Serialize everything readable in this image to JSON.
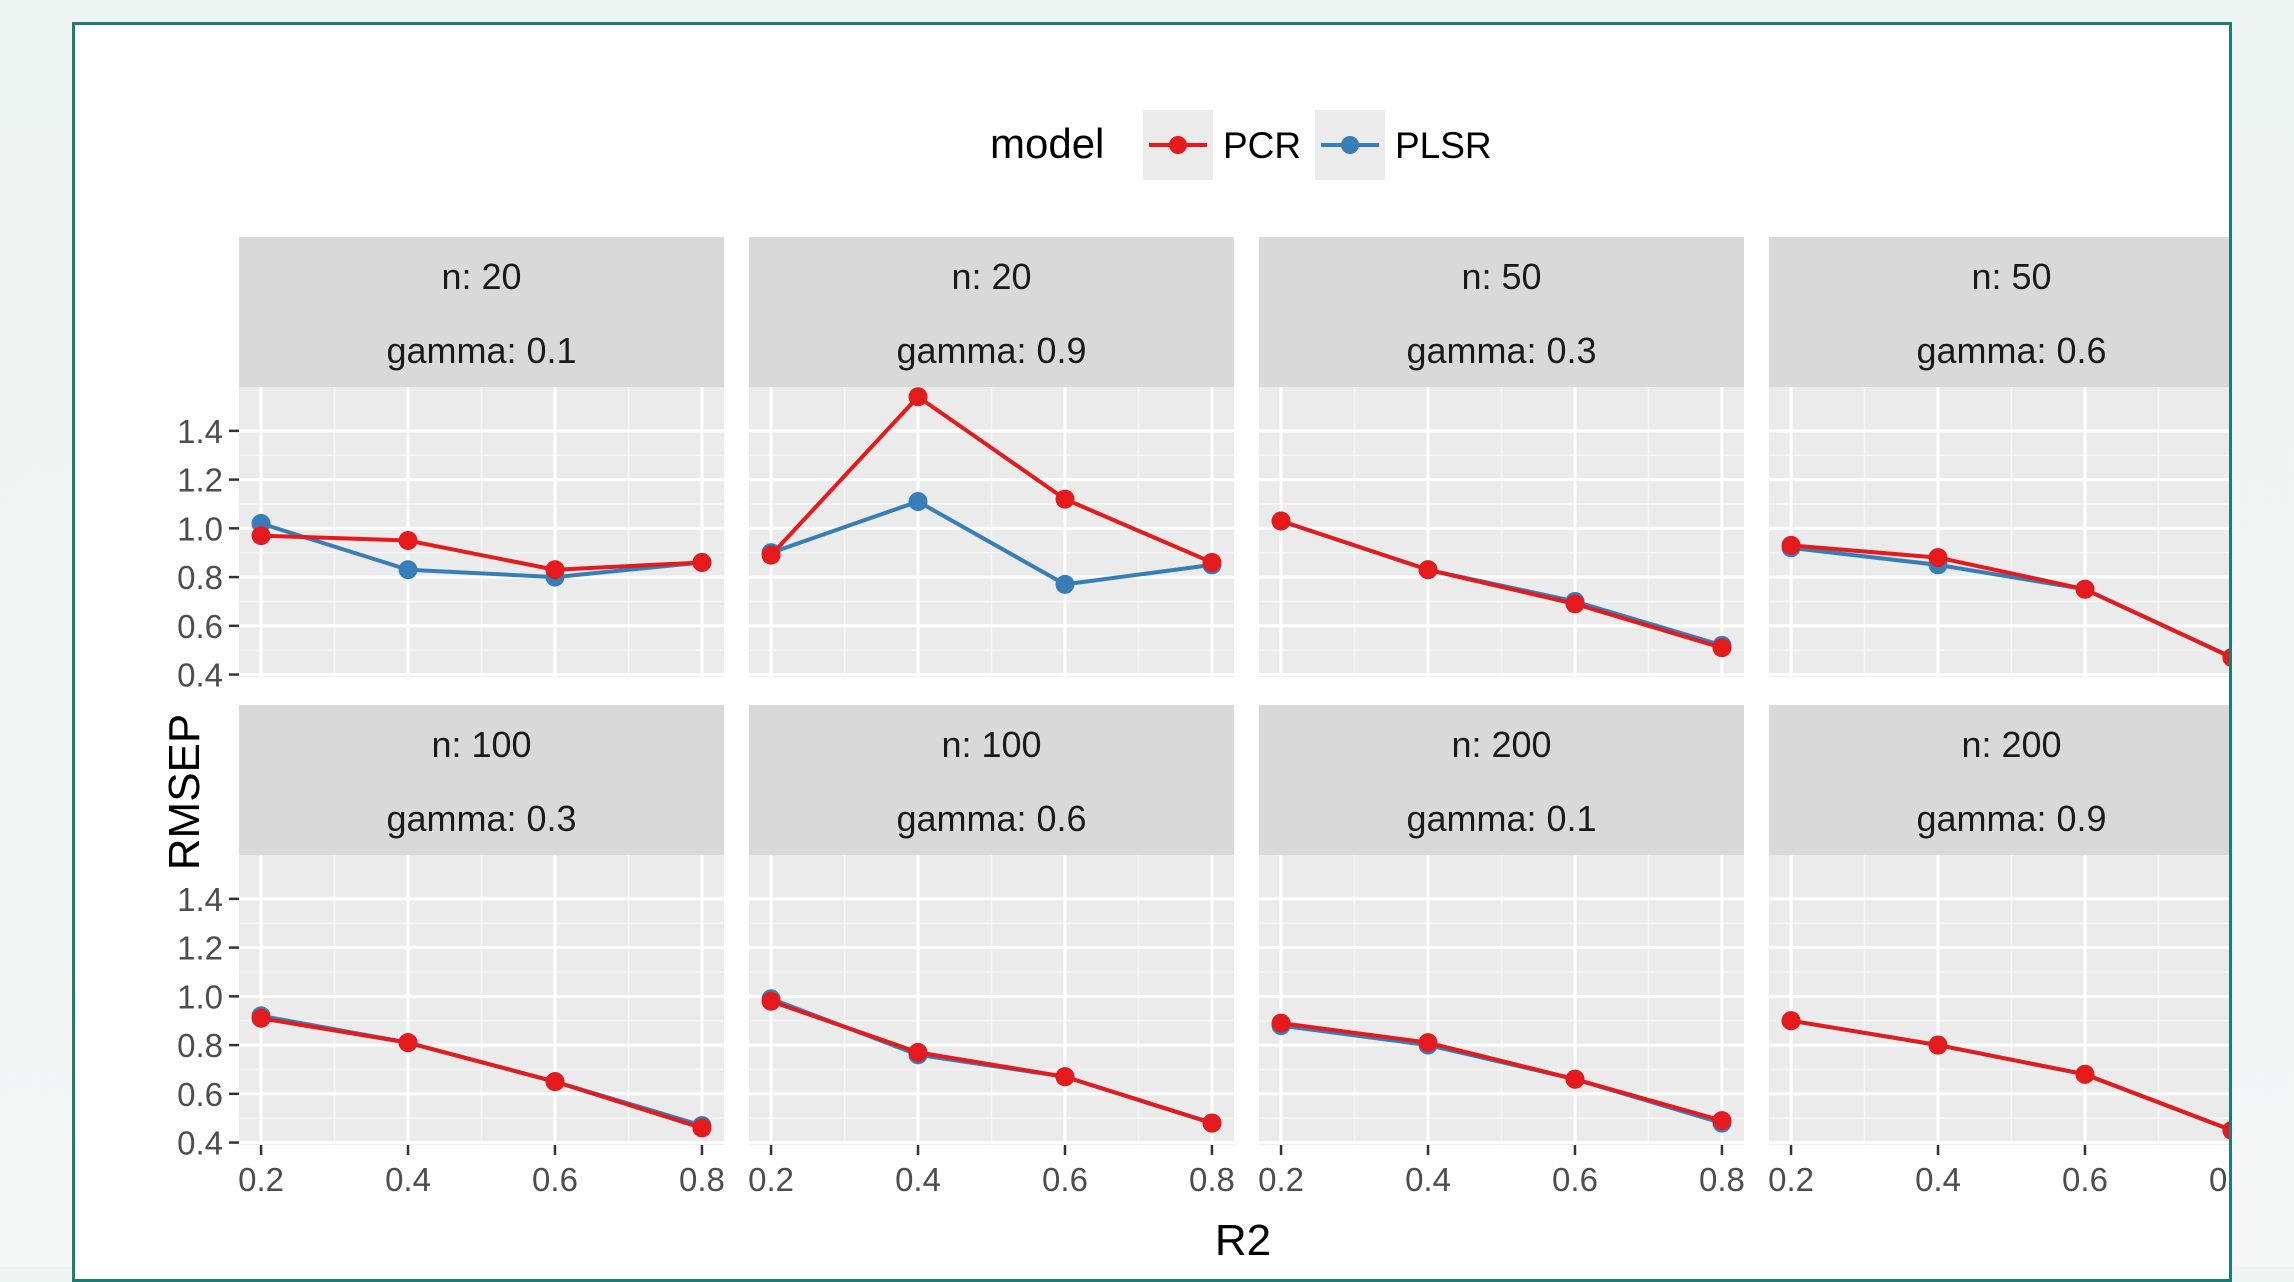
{
  "chart_data": {
    "type": "line",
    "xlabel": "R2",
    "ylabel": "RMSEP",
    "x_ticks": [
      "0.2",
      "0.4",
      "0.6",
      "0.8"
    ],
    "y_ticks": [
      "0.4",
      "0.6",
      "0.8",
      "1.0",
      "1.2",
      "1.4"
    ],
    "xlim": [
      0.17,
      0.83
    ],
    "ylim": [
      0.39,
      1.58
    ],
    "grid": true,
    "legend": {
      "title": "model",
      "placement": "top",
      "entries": [
        {
          "name": "PCR",
          "color": "#e41a1c"
        },
        {
          "name": "PLSR",
          "color": "#377eb8"
        }
      ]
    },
    "x": [
      0.2,
      0.4,
      0.6,
      0.8
    ],
    "panels": [
      {
        "strip1": "n: 20",
        "strip2": "gamma: 0.1",
        "series": [
          {
            "name": "PLSR",
            "values": [
              1.02,
              0.83,
              0.8,
              0.86
            ]
          },
          {
            "name": "PCR",
            "values": [
              0.97,
              0.95,
              0.83,
              0.86
            ]
          }
        ]
      },
      {
        "strip1": "n: 20",
        "strip2": "gamma: 0.9",
        "series": [
          {
            "name": "PLSR",
            "values": [
              0.9,
              1.11,
              0.77,
              0.85
            ]
          },
          {
            "name": "PCR",
            "values": [
              0.89,
              1.54,
              1.12,
              0.86
            ]
          }
        ]
      },
      {
        "strip1": "n: 50",
        "strip2": "gamma: 0.3",
        "series": [
          {
            "name": "PLSR",
            "values": [
              1.03,
              0.83,
              0.7,
              0.52
            ]
          },
          {
            "name": "PCR",
            "values": [
              1.03,
              0.83,
              0.69,
              0.51
            ]
          }
        ]
      },
      {
        "strip1": "n: 50",
        "strip2": "gamma: 0.6",
        "series": [
          {
            "name": "PLSR",
            "values": [
              0.92,
              0.85,
              0.75,
              0.47
            ]
          },
          {
            "name": "PCR",
            "values": [
              0.93,
              0.88,
              0.75,
              0.47
            ]
          }
        ]
      },
      {
        "strip1": "n: 100",
        "strip2": "gamma: 0.3",
        "series": [
          {
            "name": "PLSR",
            "values": [
              0.92,
              0.81,
              0.65,
              0.47
            ]
          },
          {
            "name": "PCR",
            "values": [
              0.91,
              0.81,
              0.65,
              0.46
            ]
          }
        ]
      },
      {
        "strip1": "n: 100",
        "strip2": "gamma: 0.6",
        "series": [
          {
            "name": "PLSR",
            "values": [
              0.99,
              0.76,
              0.67,
              0.48
            ]
          },
          {
            "name": "PCR",
            "values": [
              0.98,
              0.77,
              0.67,
              0.48
            ]
          }
        ]
      },
      {
        "strip1": "n: 200",
        "strip2": "gamma: 0.1",
        "series": [
          {
            "name": "PLSR",
            "values": [
              0.88,
              0.8,
              0.66,
              0.48
            ]
          },
          {
            "name": "PCR",
            "values": [
              0.89,
              0.81,
              0.66,
              0.49
            ]
          }
        ]
      },
      {
        "strip1": "n: 200",
        "strip2": "gamma: 0.9",
        "series": [
          {
            "name": "PLSR",
            "values": [
              0.9,
              0.8,
              0.68,
              0.45
            ]
          },
          {
            "name": "PCR",
            "values": [
              0.9,
              0.8,
              0.68,
              0.45
            ]
          }
        ]
      }
    ]
  }
}
